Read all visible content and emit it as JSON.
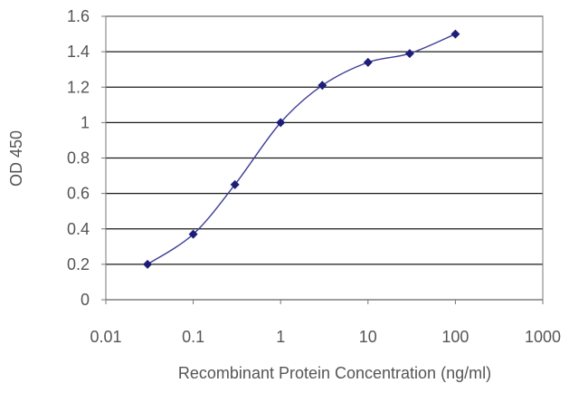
{
  "chart_data": {
    "type": "line",
    "title": "",
    "xlabel": "Recombinant Protein Concentration (ng/ml)",
    "ylabel": "OD 450",
    "x_scale": "log",
    "xlim": [
      0.01,
      1000
    ],
    "ylim": [
      0,
      1.6
    ],
    "x_ticks": [
      "0.01",
      "0.1",
      "1",
      "10",
      "100",
      "1000"
    ],
    "y_ticks": [
      "0",
      "0.2",
      "0.4",
      "0.6",
      "0.8",
      "1",
      "1.2",
      "1.4",
      "1.6"
    ],
    "grid": "horizontal",
    "legend": "none",
    "series": [
      {
        "x": [
          0.03,
          0.1,
          0.3,
          1,
          3,
          10,
          30,
          100
        ],
        "y": [
          0.2,
          0.37,
          0.65,
          1.0,
          1.21,
          1.34,
          1.39,
          1.5
        ],
        "color": "#3d3d99",
        "marker": "diamond",
        "marker_color": "#1e1e78"
      }
    ]
  }
}
